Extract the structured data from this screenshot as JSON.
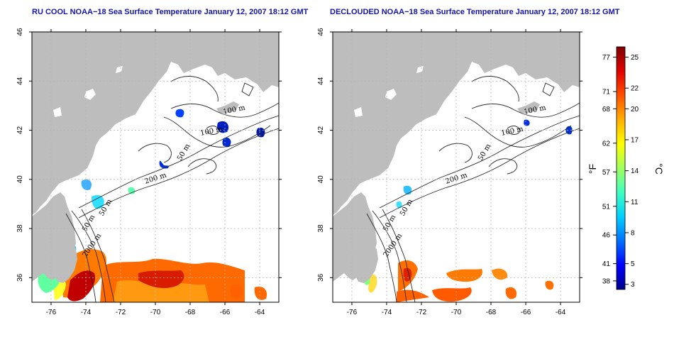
{
  "titles": {
    "left": "RU COOL NOAA−18 Sea Surface Temperature January 12, 2007 18:12 GMT",
    "right": "DECLOUDED NOAA−18 Sea Surface Temperature January 12, 2007 18:12 GMT"
  },
  "axes": {
    "x_ticks": [
      "-76",
      "-74",
      "-72",
      "-70",
      "-68",
      "-66",
      "-64"
    ],
    "y_ticks": [
      "36",
      "38",
      "40",
      "42",
      "44",
      "46"
    ],
    "x_values": [
      -76,
      -74,
      -72,
      -70,
      -68,
      -66,
      -64
    ],
    "y_values": [
      36,
      38,
      40,
      42,
      44,
      46
    ],
    "lon_range": [
      -77.1,
      -62.9
    ],
    "lat_range": [
      35.0,
      46.0
    ]
  },
  "contour_labels": [
    "100 m",
    "100 m",
    "50 m",
    "200 m",
    "50 m",
    "50 m",
    "2000 m"
  ],
  "colorbar": {
    "unit_left": "°F",
    "unit_right": "°C",
    "fahrenheit_ticks": [
      "77",
      "71",
      "68",
      "62",
      "57",
      "51",
      "46",
      "41",
      "38"
    ],
    "celsius_ticks": [
      "25",
      "22",
      "20",
      "17",
      "14",
      "11",
      "8",
      "5",
      "3"
    ],
    "fahrenheit_values": [
      77,
      71,
      68,
      62,
      57,
      51,
      46,
      41,
      38
    ],
    "celsius_values": [
      25,
      22,
      20,
      17,
      14,
      11,
      8,
      5,
      3
    ],
    "range_c": [
      2.5,
      26.0
    ],
    "colors": [
      "#00008c",
      "#0000ff",
      "#0070ff",
      "#00d0ff",
      "#40ffc0",
      "#a0ff60",
      "#ffff00",
      "#ffb000",
      "#ff5000",
      "#e00000",
      "#800000"
    ]
  },
  "colors": {
    "land": "#bdbdbd",
    "ocean": "#ffffff",
    "title": "#1515a8",
    "contour": "#2a2a2a",
    "grid": "#b4b4b4"
  }
}
